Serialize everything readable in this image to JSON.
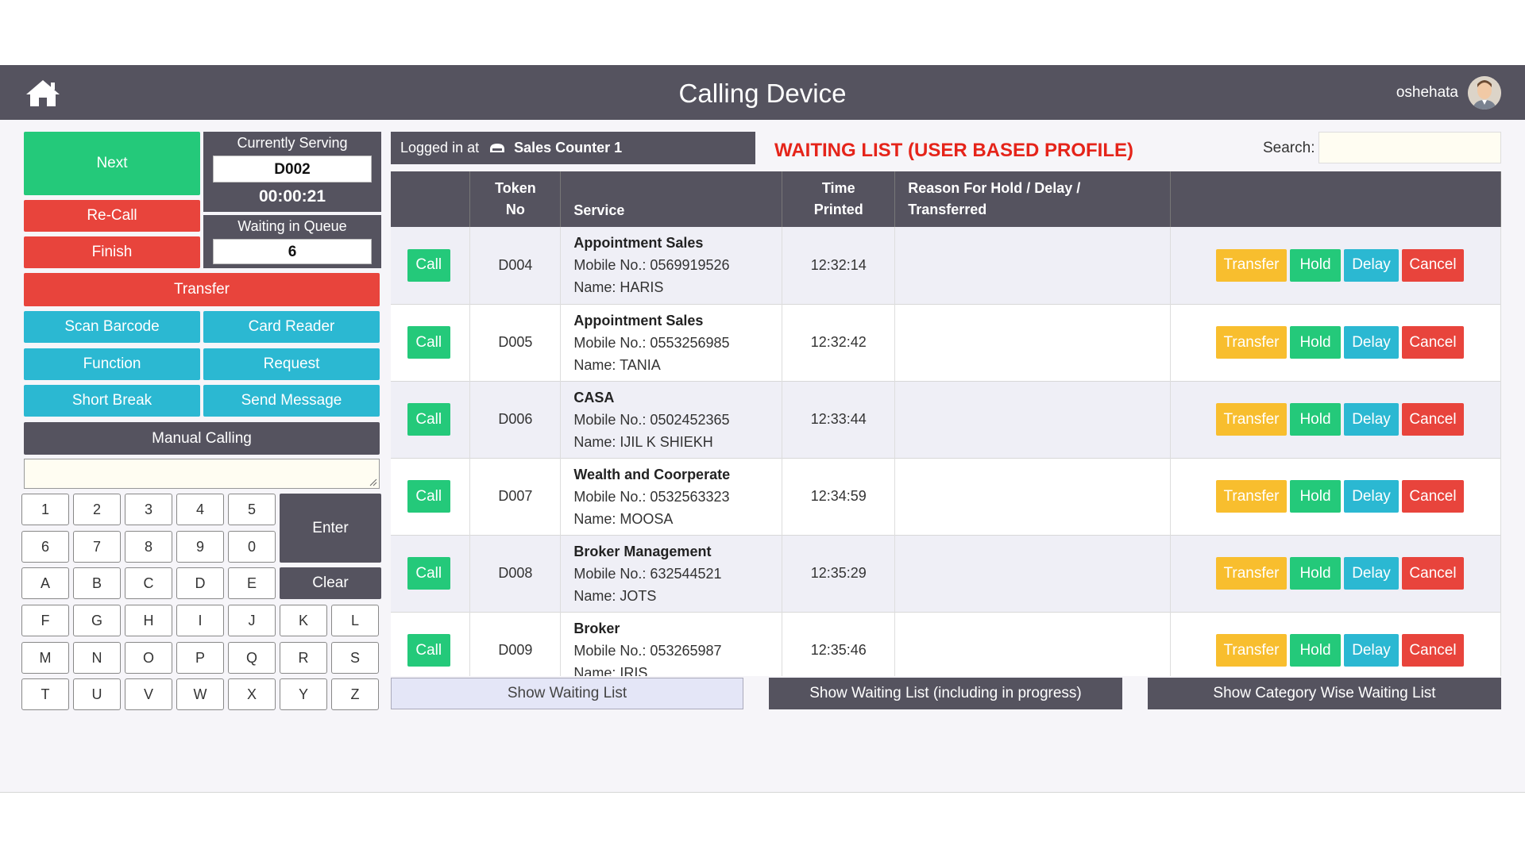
{
  "header": {
    "title": "Calling Device",
    "user": "oshehata",
    "icons": {
      "home": "home-icon",
      "avatar": "user-avatar"
    }
  },
  "controls": {
    "next": "Next",
    "recall": "Re-Call",
    "finish": "Finish",
    "transfer": "Transfer",
    "scan_barcode": "Scan Barcode",
    "card_reader": "Card Reader",
    "function": "Function",
    "request": "Request",
    "short_break": "Short Break",
    "send_message": "Send Message",
    "manual_calling": "Manual Calling"
  },
  "serving": {
    "label": "Currently Serving",
    "token": "D002",
    "timer": "00:00:21",
    "queue_label": "Waiting in Queue",
    "queue_count": "6"
  },
  "keypad": {
    "keys": [
      "1",
      "2",
      "3",
      "4",
      "5",
      "6",
      "7",
      "8",
      "9",
      "0",
      "A",
      "B",
      "C",
      "D",
      "E",
      "F",
      "G",
      "H",
      "I",
      "J",
      "K",
      "L",
      "M",
      "N",
      "O",
      "P",
      "Q",
      "R",
      "S",
      "T",
      "U",
      "V",
      "W",
      "X",
      "Y",
      "Z"
    ],
    "enter": "Enter",
    "clear": "Clear"
  },
  "login": {
    "prefix": "Logged in at",
    "counter": "Sales Counter 1",
    "icon": "counter-icon"
  },
  "waiting_list": {
    "title": "WAITING LIST (USER BASED PROFILE)",
    "search_label": "Search:",
    "search_value": "",
    "headers": {
      "token_line1": "Token",
      "token_line2": "No",
      "service": "Service",
      "time_line1": "Time",
      "time_line2": "Printed",
      "reason_line1": "Reason For Hold / Delay /",
      "reason_line2": "Transferred"
    },
    "button_labels": {
      "call": "Call",
      "transfer": "Transfer",
      "hold": "Hold",
      "delay": "Delay",
      "cancel": "Cancel"
    },
    "rows": [
      {
        "token": "D004",
        "service": "Appointment Sales",
        "mobile": "Mobile No.: 0569919526",
        "name": "Name: HARIS",
        "time": "12:32:14",
        "reason": ""
      },
      {
        "token": "D005",
        "service": "Appointment Sales",
        "mobile": "Mobile No.: 0553256985",
        "name": "Name: TANIA",
        "time": "12:32:42",
        "reason": ""
      },
      {
        "token": "D006",
        "service": "CASA",
        "mobile": "Mobile No.: 0502452365",
        "name": "Name: IJIL K SHIEKH",
        "time": "12:33:44",
        "reason": ""
      },
      {
        "token": "D007",
        "service": "Wealth and Coorperate",
        "mobile": "Mobile No.: 0532563323",
        "name": "Name: MOOSA",
        "time": "12:34:59",
        "reason": ""
      },
      {
        "token": "D008",
        "service": "Broker Management",
        "mobile": "Mobile No.: 632544521",
        "name": "Name: JOTS",
        "time": "12:35:29",
        "reason": ""
      },
      {
        "token": "D009",
        "service": "Broker",
        "mobile": "Mobile No.: 053265987",
        "name": "Name: IRIS",
        "time": "12:35:46",
        "reason": ""
      }
    ]
  },
  "bottom": {
    "show_waiting": "Show Waiting List",
    "show_waiting_progress": "Show Waiting List (including in progress)",
    "show_category": "Show Category Wise Waiting List"
  },
  "colors": {
    "header": "#55535f",
    "green": "#24c97a",
    "red": "#e8443c",
    "cyan": "#2bb8d2",
    "yellow": "#f8be2e",
    "title_red": "#e5241a"
  }
}
